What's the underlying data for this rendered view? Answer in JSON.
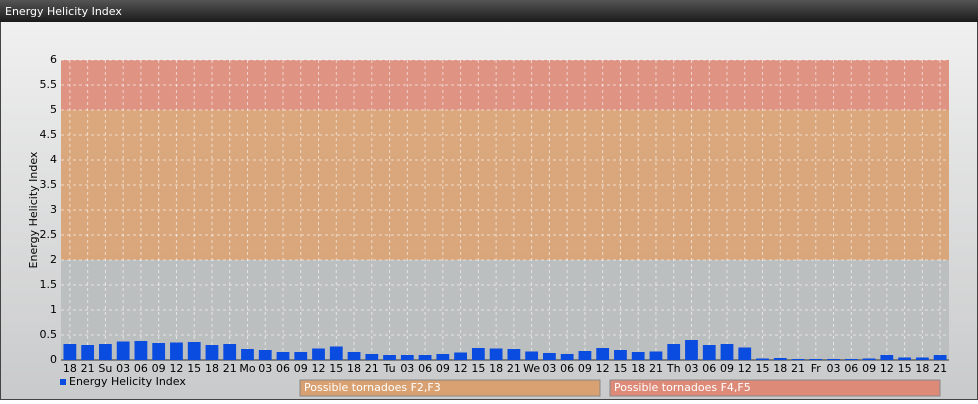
{
  "chart_data": {
    "type": "bar",
    "title": "Energy Helicity Index",
    "y_label": "Energy Helicity Index",
    "categories": [
      "18",
      "21",
      "Su",
      "03",
      "06",
      "09",
      "12",
      "15",
      "18",
      "21",
      "Mo",
      "03",
      "06",
      "09",
      "12",
      "15",
      "18",
      "21",
      "Tu",
      "03",
      "06",
      "09",
      "12",
      "15",
      "18",
      "21",
      "We",
      "03",
      "06",
      "09",
      "12",
      "15",
      "18",
      "21",
      "Th",
      "03",
      "06",
      "09",
      "12",
      "15",
      "18",
      "21",
      "Fr",
      "03",
      "06",
      "09",
      "12",
      "15",
      "18",
      "21"
    ],
    "series": [
      {
        "name": "Energy Helicity Index",
        "color": "#0a4be0",
        "values": [
          0.32,
          0.3,
          0.32,
          0.37,
          0.38,
          0.34,
          0.35,
          0.36,
          0.3,
          0.32,
          0.22,
          0.2,
          0.16,
          0.16,
          0.23,
          0.27,
          0.16,
          0.12,
          0.1,
          0.1,
          0.1,
          0.12,
          0.15,
          0.24,
          0.23,
          0.22,
          0.17,
          0.14,
          0.12,
          0.18,
          0.24,
          0.2,
          0.16,
          0.17,
          0.32,
          0.4,
          0.3,
          0.32,
          0.25,
          0.03,
          0.04,
          0.02,
          0.02,
          0.02,
          0.02,
          0.03,
          0.1,
          0.05,
          0.05,
          0.1
        ]
      }
    ],
    "bands": [
      {
        "from": 0,
        "to": 2,
        "color": "#b9bcbd"
      },
      {
        "from": 2,
        "to": 5,
        "color": "#d9a171",
        "label": "Possible tornadoes F2,F3"
      },
      {
        "from": 5,
        "to": 6,
        "color": "#dd8a78",
        "label": "Possible tornadoes F4,F5"
      }
    ],
    "ylim": [
      0,
      6
    ],
    "yticks": [
      0,
      0.5,
      1,
      1.5,
      2,
      2.5,
      3,
      3.5,
      4,
      4.5,
      5,
      5.5,
      6
    ],
    "grid": true
  }
}
